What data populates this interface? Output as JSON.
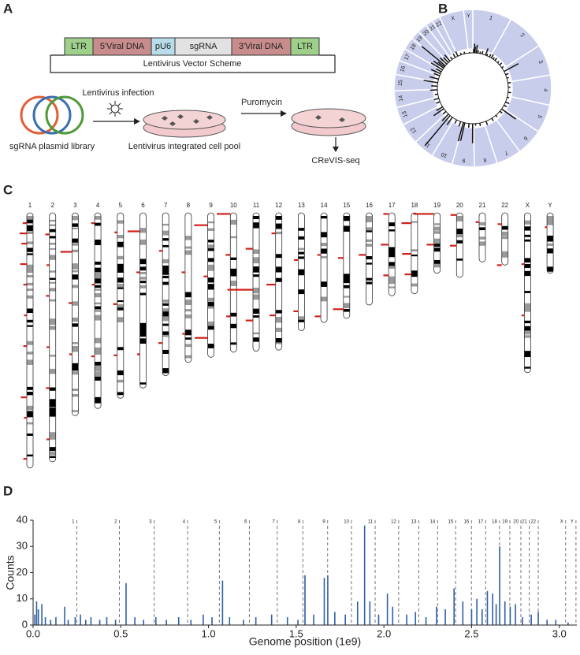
{
  "panels": [
    "A",
    "B",
    "C",
    "D"
  ],
  "scheme": {
    "elements": [
      "LTR",
      "5'Viral DNA",
      "pU6",
      "sgRNA",
      "3'Viral DNA",
      "LTR"
    ],
    "caption": "Lentivirus Vector Scheme",
    "infection": "Lentivirus infection",
    "library": "sgRNA plasmid library",
    "pool": "Lentivirus integrated cell pool",
    "selection": "Puromycin",
    "readout": "CReVIS-seq"
  },
  "chart_data": {
    "type": "bar",
    "xlabel": "Genome position (1e9)",
    "ylabel": "Counts",
    "color": "#2f5fa8",
    "xlim": [
      0,
      3.1
    ],
    "xticks": [
      {
        "value": 0,
        "label": "0.0"
      },
      0.5,
      {
        "value": 1,
        "label": "1.0"
      },
      1.5,
      {
        "value": 2,
        "label": "2.0"
      },
      2.5,
      {
        "value": 3,
        "label": "3.0"
      }
    ],
    "ylim": [
      0,
      40
    ],
    "yticks": [
      0,
      10,
      20,
      30,
      40
    ],
    "chromosome_labels": [
      "1",
      "2",
      "3",
      "4",
      "5",
      "6",
      "7",
      "8",
      "9",
      "10",
      "11",
      "12",
      "13",
      "14",
      "15",
      "16",
      "17",
      "18",
      "19",
      "20",
      "21",
      "22",
      "X",
      "Y"
    ],
    "chromosome_ends": [
      0.249,
      0.492,
      0.69,
      0.881,
      1.062,
      1.233,
      1.392,
      1.538,
      1.679,
      1.815,
      1.95,
      2.084,
      2.199,
      2.306,
      2.409,
      2.499,
      2.58,
      2.659,
      2.718,
      2.781,
      2.829,
      2.88,
      3.036,
      3.095
    ],
    "x": [
      0.01,
      0.02,
      0.03,
      0.05,
      0.07,
      0.1,
      0.13,
      0.18,
      0.2,
      0.24,
      0.27,
      0.3,
      0.33,
      0.38,
      0.42,
      0.47,
      0.53,
      0.58,
      0.63,
      0.7,
      0.76,
      0.83,
      0.9,
      0.97,
      1.02,
      1.08,
      1.12,
      1.2,
      1.27,
      1.36,
      1.45,
      1.51,
      1.55,
      1.6,
      1.66,
      1.68,
      1.72,
      1.78,
      1.85,
      1.89,
      1.92,
      1.97,
      2.02,
      2.05,
      2.13,
      2.18,
      2.24,
      2.3,
      2.35,
      2.4,
      2.45,
      2.5,
      2.53,
      2.56,
      2.59,
      2.62,
      2.64,
      2.66,
      2.69,
      2.72,
      2.75,
      2.79,
      2.84,
      2.88,
      2.93,
      2.98,
      3.05
    ],
    "values": [
      4,
      9,
      6,
      8,
      3,
      2,
      3,
      7,
      2,
      3,
      4,
      2,
      3,
      2,
      3,
      2,
      16,
      3,
      2,
      3,
      2,
      3,
      2,
      4,
      3,
      17,
      3,
      2,
      3,
      4,
      3,
      2,
      19,
      4,
      18,
      19,
      5,
      4,
      9,
      38,
      9,
      4,
      12,
      7,
      4,
      5,
      3,
      7,
      6,
      14,
      9,
      6,
      10,
      6,
      13,
      12,
      8,
      30,
      9,
      7,
      8,
      3,
      4,
      5,
      2,
      2,
      1
    ]
  }
}
